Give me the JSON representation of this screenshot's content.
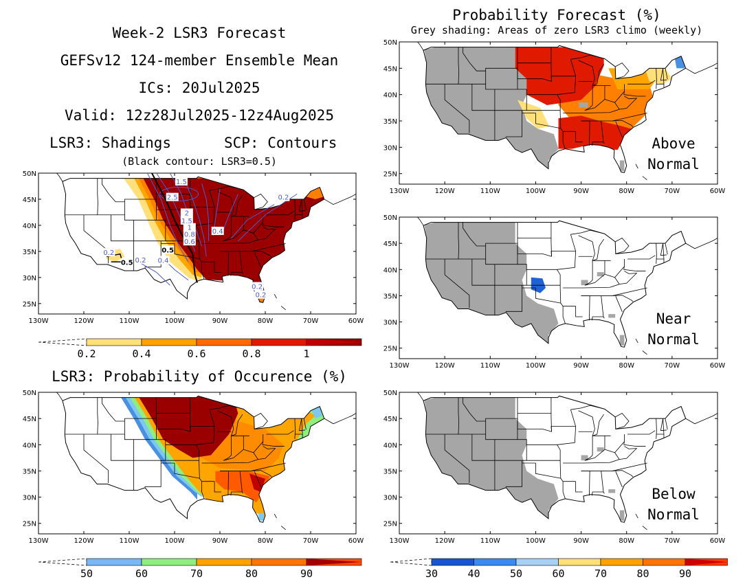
{
  "header": {
    "lines": [
      "Week-2 LSR3 Forecast",
      "GEFSv12 124-member Ensemble Mean",
      "ICs: 20Jul2025",
      "Valid: 12z28Jul2025-12z4Aug2025"
    ],
    "shadings": "LSR3: Shadings",
    "contours": "SCP: Contours",
    "note": "(Black contour: LSR3=0.5)"
  },
  "right_header": {
    "title": "Probability Forecast (%)",
    "subtitle": "Grey shading: Areas of zero LSR3 climo (weekly)"
  },
  "occurrence_title": "LSR3: Probability of Occurence (%)",
  "lat_ticks": [
    "25N",
    "30N",
    "35N",
    "40N",
    "45N",
    "50N"
  ],
  "lon_ticks": [
    "130W",
    "120W",
    "110W",
    "100W",
    "90W",
    "80W",
    "70W",
    "60W"
  ],
  "maps": {
    "lsr3": {
      "contour_labels": [
        "1.5",
        "2.5",
        "2",
        "1.5",
        "1",
        "0.8",
        "0.6",
        "0.4",
        "0.2",
        "0.5",
        "0.2",
        "0.5",
        "0.2",
        "0.4",
        "0.2",
        "0.2"
      ]
    },
    "above": {
      "label": [
        "Above",
        "Normal"
      ]
    },
    "near": {
      "label": [
        "Near",
        "Normal"
      ]
    },
    "below": {
      "label": [
        "Below",
        "Normal"
      ]
    }
  },
  "colorbars": {
    "lsr3": {
      "ticks": [
        "0.2",
        "0.4",
        "0.6",
        "0.8",
        "1"
      ],
      "colors": [
        "#ffffff",
        "#ffe07a",
        "#ffa200",
        "#ff6a00",
        "#e01a00",
        "#990000",
        "#c00000"
      ]
    },
    "occurrence": {
      "ticks": [
        "50",
        "60",
        "70",
        "80",
        "90"
      ],
      "colors": [
        "#ffffff",
        "#7ab8f5",
        "#90ee80",
        "#ffa200",
        "#ff7300",
        "#ff4c00",
        "#a50000"
      ]
    },
    "probability": {
      "ticks": [
        "30",
        "40",
        "50",
        "60",
        "70",
        "80",
        "90"
      ],
      "colors": [
        "#ffffff",
        "#1a55d0",
        "#3a8af0",
        "#a8d0f5",
        "#ffe07a",
        "#ffa200",
        "#ff7300",
        "#ff3a00",
        "#cc0000"
      ]
    }
  },
  "colors": {
    "grey": "#a6a6a6",
    "dark_red": "#9b0000",
    "red": "#e01a00",
    "orange": "#ff8000",
    "lt_orange": "#ffa500",
    "yellow": "#ffe07a",
    "blue": "#1f62d6",
    "lt_blue": "#a8d0f5",
    "mid_blue": "#4a90e2",
    "green": "#90ee80",
    "contour": "#4a5cd0"
  }
}
